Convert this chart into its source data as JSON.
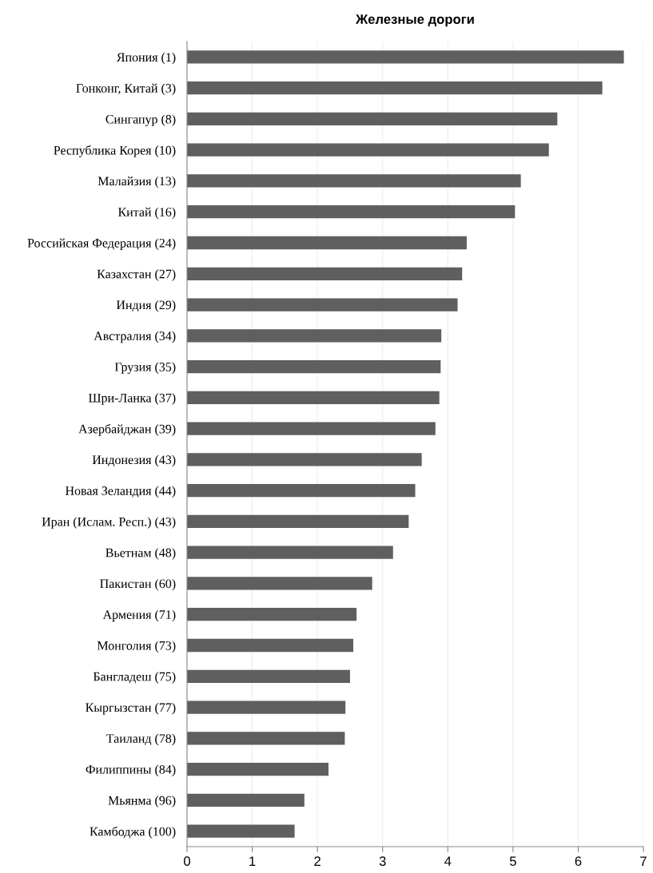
{
  "chart_data": {
    "type": "bar",
    "orientation": "horizontal",
    "title": "Железные дороги",
    "categories": [
      "Япония (1)",
      "Гонконг, Китай (3)",
      "Сингапур (8)",
      "Республика Корея (10)",
      "Малайзия (13)",
      "Китай (16)",
      "Российская Федерация (24)",
      "Казахстан (27)",
      "Индия (29)",
      "Австралия (34)",
      "Грузия (35)",
      "Шри-Ланка (37)",
      "Азербайджан (39)",
      "Индонезия (43)",
      "Новая Зеландия (44)",
      "Иран (Ислам. Респ.) (43)",
      "Вьетнам (48)",
      "Пакистан (60)",
      "Армения (71)",
      "Монголия (73)",
      "Бангладеш (75)",
      "Кыргызстан (77)",
      "Таиланд (78)",
      "Филиппины (84)",
      "Мьянма (96)",
      "Камбоджа (100)"
    ],
    "values": [
      6.7,
      6.37,
      5.68,
      5.55,
      5.12,
      5.03,
      4.29,
      4.22,
      4.15,
      3.9,
      3.89,
      3.87,
      3.81,
      3.6,
      3.5,
      3.4,
      3.16,
      2.84,
      2.6,
      2.55,
      2.5,
      2.43,
      2.42,
      2.17,
      1.8,
      1.65
    ],
    "color": "#5f5f5f",
    "xlim": [
      0,
      7
    ],
    "xticks": [
      0,
      1,
      2,
      3,
      4,
      5,
      6,
      7
    ],
    "grid": "x"
  }
}
